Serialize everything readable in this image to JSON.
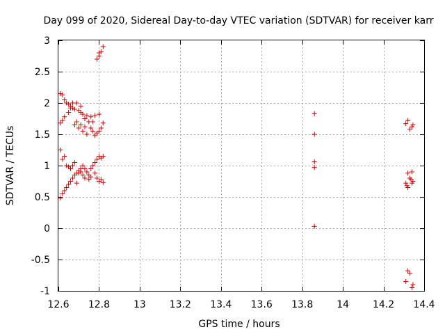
{
  "chart_data": {
    "type": "scatter",
    "title": "Day 099 of 2020, Sidereal Day-to-day VTEC variation (SDTVAR) for receiver karr",
    "xlabel": "GPS time / hours",
    "ylabel": "SDTVAR / TECUs",
    "xlim": [
      12.6,
      14.4
    ],
    "ylim": [
      -1,
      3
    ],
    "xticks": [
      12.6,
      12.8,
      13,
      13.2,
      13.4,
      13.6,
      13.8,
      14,
      14.2,
      14.4
    ],
    "xtick_labels": [
      "12.6",
      "12.8",
      "13",
      "13.2",
      "13.4",
      "13.6",
      "13.8",
      "14",
      "14.2",
      "14.4"
    ],
    "yticks": [
      -1,
      -0.5,
      0,
      0.5,
      1,
      1.5,
      2,
      2.5,
      3
    ],
    "ytick_labels": [
      "-1",
      "-0.5",
      "0",
      "0.5",
      "1",
      "1.5",
      "2",
      "2.5",
      "3"
    ],
    "grid": true,
    "marker": "+",
    "marker_color": "#d40000",
    "series": [
      {
        "name": "SDTVAR",
        "points": [
          [
            12.79,
            2.7
          ],
          [
            12.8,
            2.75
          ],
          [
            12.8,
            2.8
          ],
          [
            12.81,
            2.82
          ],
          [
            12.82,
            2.9
          ],
          [
            12.61,
            2.15
          ],
          [
            12.62,
            2.13
          ],
          [
            12.63,
            2.05
          ],
          [
            12.64,
            2.0
          ],
          [
            12.65,
            1.98
          ],
          [
            12.66,
            1.95
          ],
          [
            12.67,
            1.92
          ],
          [
            12.68,
            1.9
          ],
          [
            12.7,
            1.88
          ],
          [
            12.71,
            1.85
          ],
          [
            12.72,
            1.82
          ],
          [
            12.74,
            1.8
          ],
          [
            12.76,
            1.78
          ],
          [
            12.78,
            1.8
          ],
          [
            12.8,
            1.82
          ],
          [
            12.61,
            1.68
          ],
          [
            12.62,
            1.72
          ],
          [
            12.63,
            1.78
          ],
          [
            12.65,
            1.85
          ],
          [
            12.66,
            1.92
          ],
          [
            12.67,
            2.0
          ],
          [
            12.68,
            1.65
          ],
          [
            12.69,
            1.7
          ],
          [
            12.7,
            1.6
          ],
          [
            12.71,
            1.65
          ],
          [
            12.72,
            1.55
          ],
          [
            12.73,
            1.62
          ],
          [
            12.74,
            1.5
          ],
          [
            12.75,
            1.7
          ],
          [
            12.76,
            1.6
          ],
          [
            12.77,
            1.55
          ],
          [
            12.78,
            1.48
          ],
          [
            12.79,
            1.52
          ],
          [
            12.8,
            1.55
          ],
          [
            12.81,
            1.6
          ],
          [
            12.82,
            1.68
          ],
          [
            12.69,
            2.0
          ],
          [
            12.71,
            1.95
          ],
          [
            12.73,
            1.75
          ],
          [
            12.77,
            1.7
          ],
          [
            12.61,
            1.25
          ],
          [
            12.62,
            1.1
          ],
          [
            12.63,
            1.15
          ],
          [
            12.64,
            1.0
          ],
          [
            12.65,
            0.98
          ],
          [
            12.66,
            0.95
          ],
          [
            12.67,
            1.0
          ],
          [
            12.68,
            1.05
          ],
          [
            12.69,
            0.88
          ],
          [
            12.7,
            0.92
          ],
          [
            12.71,
            0.9
          ],
          [
            12.72,
            1.0
          ],
          [
            12.73,
            0.95
          ],
          [
            12.74,
            0.9
          ],
          [
            12.75,
            0.85
          ],
          [
            12.76,
            0.95
          ],
          [
            12.77,
            1.0
          ],
          [
            12.78,
            1.05
          ],
          [
            12.79,
            1.1
          ],
          [
            12.8,
            1.15
          ],
          [
            12.81,
            1.12
          ],
          [
            12.82,
            1.15
          ],
          [
            12.61,
            0.48
          ],
          [
            12.62,
            0.55
          ],
          [
            12.63,
            0.6
          ],
          [
            12.64,
            0.65
          ],
          [
            12.65,
            0.7
          ],
          [
            12.66,
            0.75
          ],
          [
            12.67,
            0.8
          ],
          [
            12.68,
            0.85
          ],
          [
            12.69,
            0.72
          ],
          [
            12.7,
            0.88
          ],
          [
            12.71,
            0.95
          ],
          [
            12.72,
            0.85
          ],
          [
            12.73,
            0.8
          ],
          [
            12.74,
            0.9
          ],
          [
            12.75,
            0.78
          ],
          [
            12.76,
            0.82
          ],
          [
            12.78,
            0.88
          ],
          [
            12.79,
            0.8
          ],
          [
            12.8,
            0.75
          ],
          [
            12.81,
            0.78
          ],
          [
            12.82,
            0.73
          ],
          [
            13.86,
            1.83
          ],
          [
            13.86,
            1.5
          ],
          [
            13.86,
            1.06
          ],
          [
            13.86,
            0.97
          ],
          [
            13.86,
            0.03
          ],
          [
            14.31,
            1.67
          ],
          [
            14.32,
            1.72
          ],
          [
            14.33,
            1.58
          ],
          [
            14.34,
            1.62
          ],
          [
            14.345,
            1.65
          ],
          [
            14.32,
            0.88
          ],
          [
            14.33,
            0.8
          ],
          [
            14.34,
            0.9
          ],
          [
            14.345,
            0.75
          ],
          [
            14.31,
            0.72
          ],
          [
            14.315,
            0.68
          ],
          [
            14.32,
            0.65
          ],
          [
            14.335,
            0.78
          ],
          [
            14.34,
            0.72
          ],
          [
            14.31,
            -0.85
          ],
          [
            14.32,
            -0.68
          ],
          [
            14.33,
            -0.72
          ],
          [
            14.34,
            -0.95
          ],
          [
            14.345,
            -0.9
          ]
        ]
      }
    ]
  }
}
